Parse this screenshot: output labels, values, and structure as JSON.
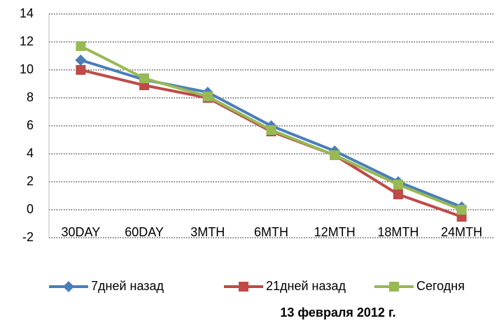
{
  "chart_data": {
    "type": "line",
    "categories": [
      "30DAY",
      "60DAY",
      "3MTH",
      "6MTH",
      "12MTH",
      "18MTH",
      "24MTH"
    ],
    "series": [
      {
        "name": "7дней назад",
        "color": "#4a7ebb",
        "marker": "diamond",
        "values": [
          10.7,
          9.3,
          8.4,
          6.0,
          4.2,
          2.0,
          0.2
        ]
      },
      {
        "name": "21дней назад",
        "color": "#be4b48",
        "marker": "square",
        "values": [
          10.0,
          8.9,
          8.0,
          5.6,
          3.9,
          1.1,
          -0.5
        ]
      },
      {
        "name": "Сегодня",
        "color": "#98b954",
        "marker": "square",
        "values": [
          11.7,
          9.4,
          8.1,
          5.7,
          3.9,
          1.8,
          0.0
        ]
      }
    ],
    "ylim": [
      -2,
      14
    ],
    "yticks": [
      -2,
      0,
      2,
      4,
      6,
      8,
      10,
      12,
      14
    ],
    "grid": true,
    "legend": "bottom",
    "caption": "13 февраля 2012 г."
  }
}
